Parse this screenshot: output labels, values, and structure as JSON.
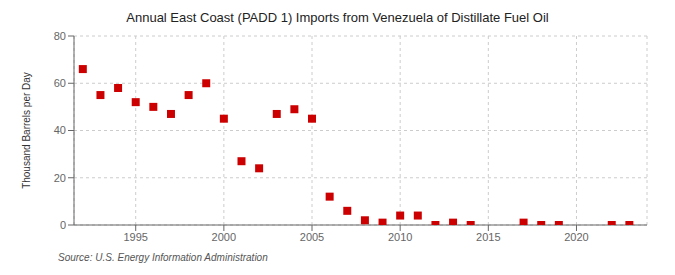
{
  "chart_data": {
    "type": "scatter",
    "title": "Annual East Coast (PADD 1) Imports from Venezuela of Distillate Fuel Oil",
    "ylabel": "Thousand Barrels per Day",
    "annotation": "Source: U.S. Energy Information Administration",
    "x": [
      1992,
      1993,
      1994,
      1995,
      1996,
      1997,
      1998,
      1999,
      2000,
      2001,
      2002,
      2003,
      2004,
      2005,
      2006,
      2007,
      2008,
      2009,
      2010,
      2011,
      2012,
      2013,
      2014,
      2017,
      2018,
      2019,
      2022,
      2023
    ],
    "values": [
      66,
      55,
      58,
      52,
      50,
      47,
      55,
      60,
      45,
      27,
      24,
      47,
      49,
      45,
      12,
      6,
      2,
      1,
      4,
      4,
      0,
      1,
      0,
      1,
      0,
      0,
      0,
      0
    ],
    "color": "#cc0000",
    "marker": "square",
    "xlim": [
      1991.5,
      2024
    ],
    "ylim": [
      0,
      80
    ],
    "xticks": [
      1995,
      2000,
      2005,
      2010,
      2015,
      2020
    ],
    "yticks": [
      0,
      20,
      40,
      60,
      80
    ],
    "grid": true
  }
}
